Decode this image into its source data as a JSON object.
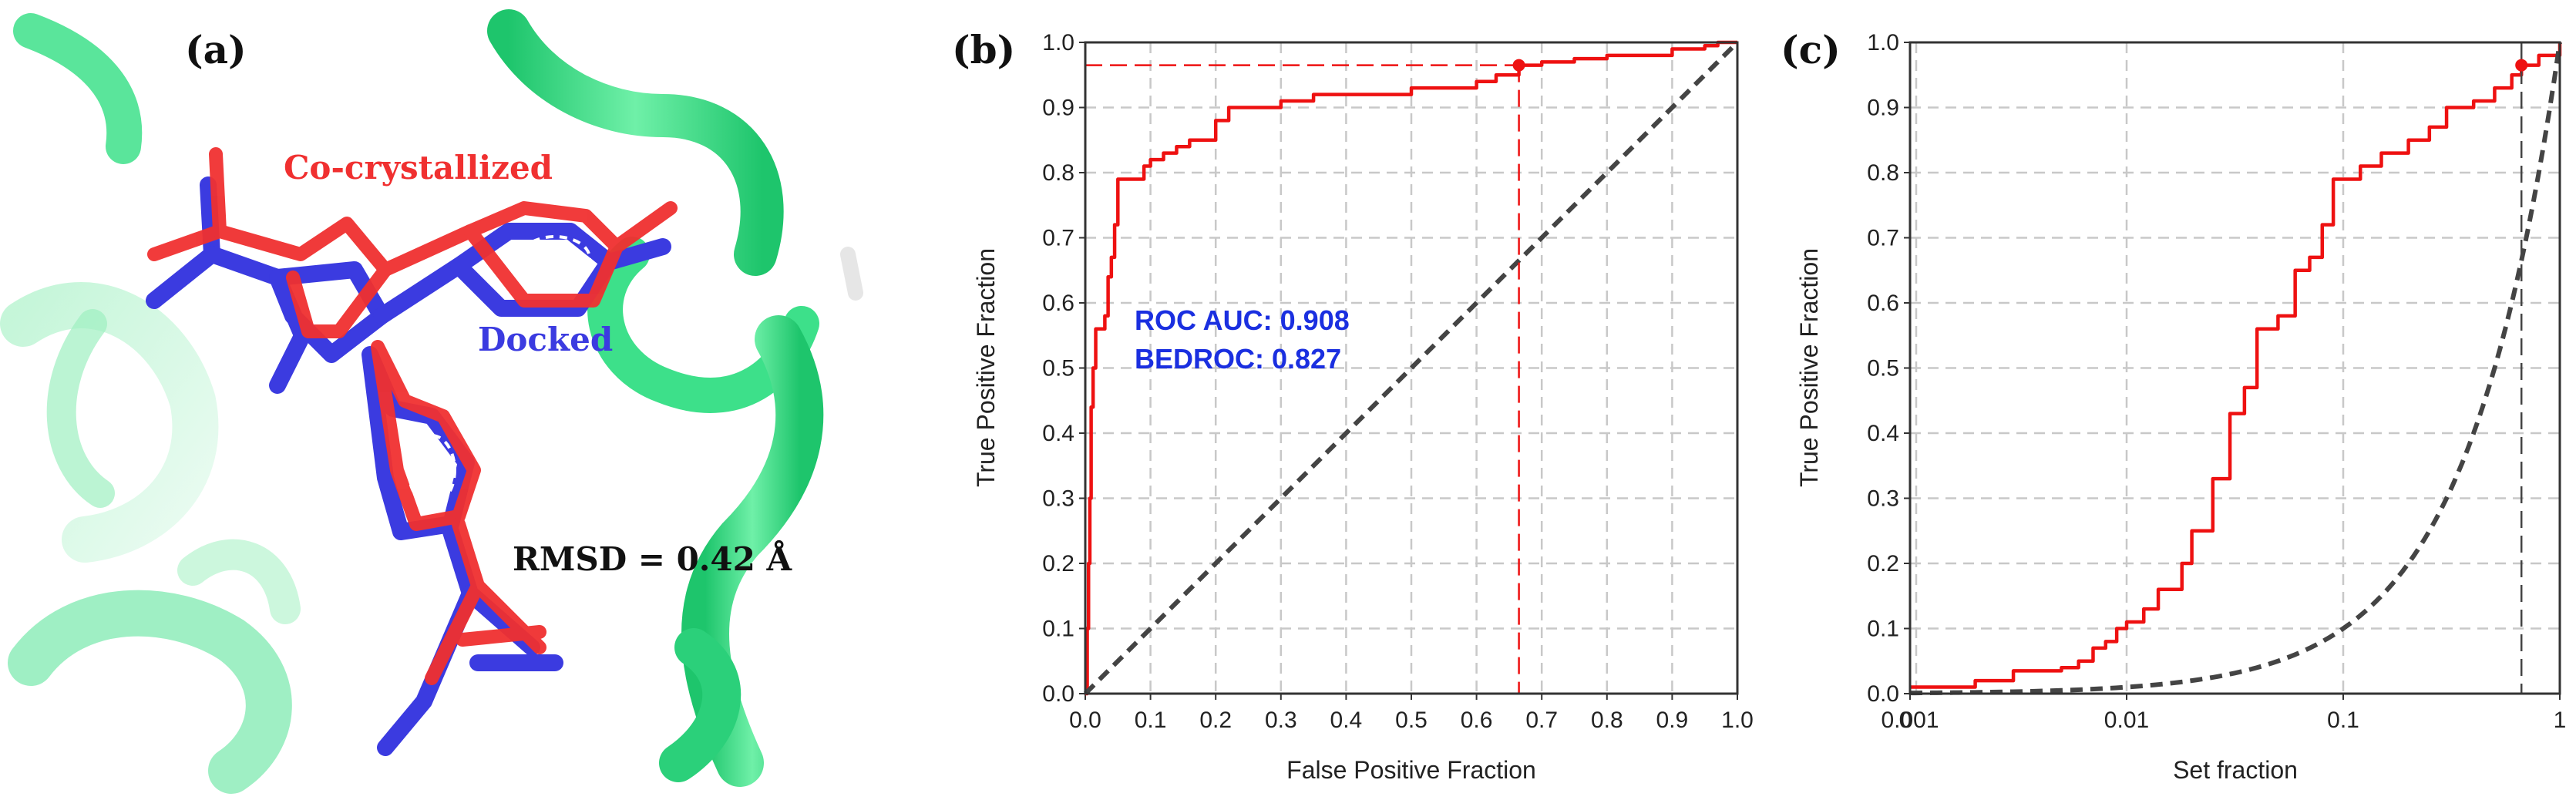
{
  "panels": {
    "a": {
      "label": "(a)",
      "cocrystal_label": "Co-crystallized",
      "docked_label": "Docked",
      "rmsd_label": "RMSD = 0.42 Å",
      "colors": {
        "ribbon": "#3de08a",
        "cocrystal": "#f03030",
        "docked": "#3b3be0"
      }
    },
    "b": {
      "label": "(b)"
    },
    "c": {
      "label": "(c)"
    }
  },
  "chart_data": [
    {
      "panel": "b",
      "type": "line",
      "xlabel": "False Positive Fraction",
      "ylabel": "True Positive Fraction",
      "xlim": [
        0,
        1
      ],
      "ylim": [
        0,
        1
      ],
      "xticks": [
        "0.0",
        "0.1",
        "0.2",
        "0.3",
        "0.4",
        "0.5",
        "0.6",
        "0.7",
        "0.8",
        "0.9",
        "1.0"
      ],
      "yticks": [
        "0.0",
        "0.1",
        "0.2",
        "0.3",
        "0.4",
        "0.5",
        "0.6",
        "0.7",
        "0.8",
        "0.9",
        "1.0"
      ],
      "grid": true,
      "annotations": [
        "ROC AUC: 0.908",
        "BEDROC: 0.827"
      ],
      "marker": {
        "x": 0.665,
        "y": 0.965
      },
      "series": [
        {
          "style": "red-solid-step",
          "color": "#ee1111",
          "x": [
            0,
            0.003,
            0.005,
            0.007,
            0.009,
            0.012,
            0.016,
            0.02,
            0.025,
            0.03,
            0.035,
            0.04,
            0.045,
            0.05,
            0.07,
            0.09,
            0.1,
            0.12,
            0.14,
            0.16,
            0.2,
            0.22,
            0.3,
            0.35,
            0.5,
            0.6,
            0.63,
            0.665,
            0.7,
            0.75,
            0.8,
            0.9,
            0.95,
            0.97,
            1.0
          ],
          "y": [
            0,
            0.1,
            0.2,
            0.3,
            0.44,
            0.5,
            0.56,
            0.56,
            0.56,
            0.58,
            0.64,
            0.67,
            0.72,
            0.79,
            0.79,
            0.81,
            0.82,
            0.83,
            0.84,
            0.85,
            0.88,
            0.9,
            0.91,
            0.92,
            0.93,
            0.94,
            0.95,
            0.965,
            0.97,
            0.975,
            0.98,
            0.99,
            0.995,
            1.0,
            1.0
          ]
        },
        {
          "style": "dashed-gray",
          "color": "#444444",
          "x": [
            0,
            1
          ],
          "y": [
            0,
            1
          ]
        }
      ]
    },
    {
      "panel": "c",
      "type": "line",
      "xlabel": "Set fraction",
      "ylabel": "True Positive Fraction",
      "xscale": "log",
      "xlim": [
        0.001,
        1
      ],
      "ylim": [
        0,
        1
      ],
      "xticks": [
        "0.001",
        "0.01",
        "0.1",
        "1"
      ],
      "xtick_overlap_label": "0",
      "yticks": [
        "0.0",
        "0.1",
        "0.2",
        "0.3",
        "0.4",
        "0.5",
        "0.6",
        "0.7",
        "0.8",
        "0.9",
        "1.0"
      ],
      "grid": true,
      "vline": 0.665,
      "marker": {
        "x": 0.665,
        "y": 0.965
      },
      "series": [
        {
          "style": "red-solid",
          "color": "#ee1111",
          "x": [
            0.001,
            0.002,
            0.003,
            0.004,
            0.005,
            0.006,
            0.007,
            0.008,
            0.009,
            0.01,
            0.011,
            0.012,
            0.014,
            0.016,
            0.018,
            0.02,
            0.025,
            0.03,
            0.035,
            0.04,
            0.045,
            0.05,
            0.06,
            0.07,
            0.08,
            0.09,
            0.1,
            0.12,
            0.15,
            0.2,
            0.25,
            0.3,
            0.4,
            0.5,
            0.6,
            0.665,
            0.8,
            1.0
          ],
          "y": [
            0.01,
            0.02,
            0.035,
            0.035,
            0.04,
            0.05,
            0.07,
            0.08,
            0.1,
            0.11,
            0.11,
            0.13,
            0.16,
            0.16,
            0.2,
            0.25,
            0.33,
            0.43,
            0.47,
            0.56,
            0.56,
            0.58,
            0.65,
            0.67,
            0.72,
            0.79,
            0.79,
            0.81,
            0.83,
            0.85,
            0.87,
            0.9,
            0.91,
            0.93,
            0.95,
            0.965,
            0.98,
            1.0
          ]
        },
        {
          "style": "dashed-gray",
          "color": "#444444",
          "func": "y = x"
        }
      ]
    }
  ]
}
